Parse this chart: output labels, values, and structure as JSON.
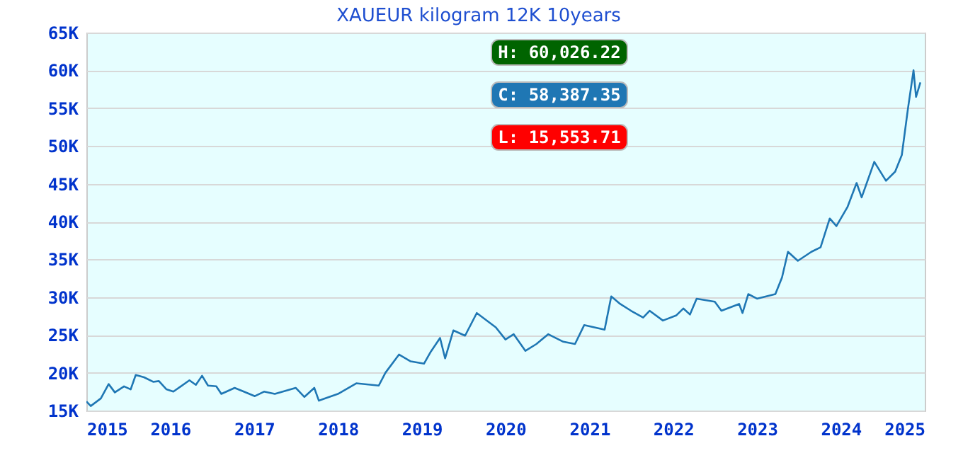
{
  "chart_data": {
    "type": "line",
    "title": "XAUEUR kilogram 12K 10years",
    "annotations": [
      "H: 60,026.22",
      "C: 58,387.35",
      "L: 15,553.71"
    ],
    "x": [
      "2015-01-01",
      "2015-01-20",
      "2015-03-05",
      "2015-04-08",
      "2015-05-05",
      "2015-06-14",
      "2015-07-13",
      "2015-08-04",
      "2015-09-09",
      "2015-10-19",
      "2015-11-13",
      "2015-12-16",
      "2016-01-15",
      "2016-03-25",
      "2016-04-22",
      "2016-05-19",
      "2016-06-14",
      "2016-07-20",
      "2016-08-11",
      "2016-10-08",
      "2016-11-17",
      "2017-01-04",
      "2017-02-13",
      "2017-04-01",
      "2017-07-01",
      "2017-08-08",
      "2017-09-20",
      "2017-10-10",
      "2017-10-27",
      "2018-01-01",
      "2018-03-22",
      "2018-06-28",
      "2018-07-27",
      "2018-09-24",
      "2018-11-14",
      "2019-01-11",
      "2019-02-10",
      "2019-03-22",
      "2019-04-13",
      "2019-05-19",
      "2019-07-09",
      "2019-08-29",
      "2019-11-20",
      "2020-01-01",
      "2020-02-06",
      "2020-03-28",
      "2020-05-15",
      "2020-07-05",
      "2020-09-09",
      "2020-10-30",
      "2020-12-09",
      "2021-03-08",
      "2021-04-06",
      "2021-05-15",
      "2021-07-01",
      "2021-08-23",
      "2021-09-20",
      "2021-11-17",
      "2022-01-15",
      "2022-02-14",
      "2022-03-15",
      "2022-04-13",
      "2022-07-01",
      "2022-07-30",
      "2022-10-15",
      "2022-10-30",
      "2022-11-24",
      "2023-01-01",
      "2023-03-22",
      "2023-04-20",
      "2023-05-16",
      "2023-06-28",
      "2023-08-26",
      "2023-10-05",
      "2023-11-14",
      "2023-12-13",
      "2024-01-30",
      "2024-03-10",
      "2024-04-01",
      "2024-05-26",
      "2024-07-16",
      "2024-08-25",
      "2024-09-23",
      "2024-10-20",
      "2024-11-13",
      "2024-11-24",
      "2024-12-13"
    ],
    "values": [
      16200,
      15600,
      16600,
      18500,
      17400,
      18200,
      17800,
      19700,
      19400,
      18800,
      18900,
      17800,
      17500,
      19000,
      18400,
      19600,
      18300,
      18200,
      17200,
      18000,
      17500,
      16900,
      17500,
      17200,
      18000,
      16800,
      18000,
      16300,
      16500,
      17200,
      18600,
      18300,
      20000,
      22400,
      21500,
      21200,
      22800,
      24600,
      21900,
      25600,
      24900,
      27900,
      26000,
      24400,
      25100,
      22900,
      23800,
      25100,
      24100,
      23800,
      26300,
      25700,
      30100,
      29100,
      28200,
      27300,
      28200,
      26900,
      27600,
      28500,
      27700,
      29800,
      29400,
      28200,
      29100,
      27900,
      30400,
      29800,
      30400,
      32600,
      36000,
      34800,
      36000,
      36600,
      40400,
      39400,
      41900,
      45100,
      43200,
      47900,
      45400,
      46600,
      48800,
      55000,
      60000,
      56500,
      58400
    ],
    "color": "#1f77b4",
    "xlim": [
      "2015-01-01",
      "2025-01-01"
    ],
    "xticks": [
      {
        "value": "2015-01-01",
        "label": "2015"
      },
      {
        "value": "2016-01-01",
        "label": "2016"
      },
      {
        "value": "2017-01-01",
        "label": "2017"
      },
      {
        "value": "2018-01-01",
        "label": "2018"
      },
      {
        "value": "2019-01-01",
        "label": "2019"
      },
      {
        "value": "2020-01-01",
        "label": "2020"
      },
      {
        "value": "2021-01-01",
        "label": "2021"
      },
      {
        "value": "2022-01-01",
        "label": "2022"
      },
      {
        "value": "2023-01-01",
        "label": "2023"
      },
      {
        "value": "2024-01-01",
        "label": "2024"
      },
      {
        "value": "2025-01-01",
        "label": "2025"
      }
    ],
    "ylim": [
      15000,
      65000
    ],
    "yticks": [
      {
        "value": 15000,
        "label": "15K"
      },
      {
        "value": 20000,
        "label": "20K"
      },
      {
        "value": 25000,
        "label": "25K"
      },
      {
        "value": 30000,
        "label": "30K"
      },
      {
        "value": 35000,
        "label": "35K"
      },
      {
        "value": 40000,
        "label": "40K"
      },
      {
        "value": 45000,
        "label": "45K"
      },
      {
        "value": 50000,
        "label": "50K"
      },
      {
        "value": 55000,
        "label": "55K"
      },
      {
        "value": 60000,
        "label": "60K"
      },
      {
        "value": 65000,
        "label": "65K"
      }
    ],
    "grid": "y"
  }
}
